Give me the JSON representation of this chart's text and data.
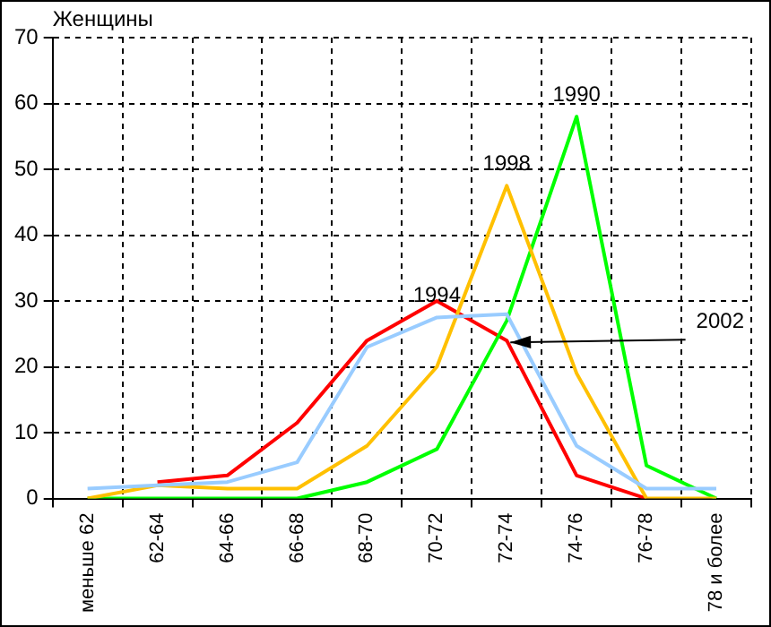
{
  "chart_data": {
    "type": "line",
    "ylabel": "Женщины",
    "categories": [
      "меньше 62",
      "62-64",
      "64-66",
      "66-68",
      "68-70",
      "70-72",
      "72-74",
      "74-76",
      "76-78",
      "78 и более"
    ],
    "series": [
      {
        "color": "#99ccff",
        "values": [
          1.5,
          2,
          2.5,
          5.5,
          23,
          27.5,
          28,
          8,
          1.5,
          1.5
        ]
      },
      {
        "color": "#ffc000",
        "values": [
          0,
          2,
          1.5,
          1.5,
          8,
          20,
          47.5,
          19,
          0,
          0
        ]
      },
      {
        "color": "#00ff00",
        "values": [
          0,
          0,
          0,
          0,
          2.5,
          7.5,
          27,
          58,
          5,
          0
        ]
      },
      {
        "color": "#ff0000",
        "values": [
          null,
          2.5,
          3.5,
          11.5,
          24,
          30,
          24,
          3.5,
          0,
          null
        ]
      }
    ],
    "annotations": [
      {
        "text": "1990",
        "x": "74-76",
        "y": 58
      },
      {
        "text": "1998",
        "x": "72-74",
        "y": 47.5
      },
      {
        "text": "1994",
        "x": "70-72",
        "y": 27.5
      },
      {
        "text": "2002",
        "x": "72-74",
        "y": 24
      }
    ],
    "ylim": [
      0,
      70
    ],
    "yticks": [
      0,
      10,
      20,
      30,
      40,
      50,
      60,
      70
    ],
    "grid": true,
    "legend": false,
    "marker": "none",
    "line_style": "solid"
  }
}
